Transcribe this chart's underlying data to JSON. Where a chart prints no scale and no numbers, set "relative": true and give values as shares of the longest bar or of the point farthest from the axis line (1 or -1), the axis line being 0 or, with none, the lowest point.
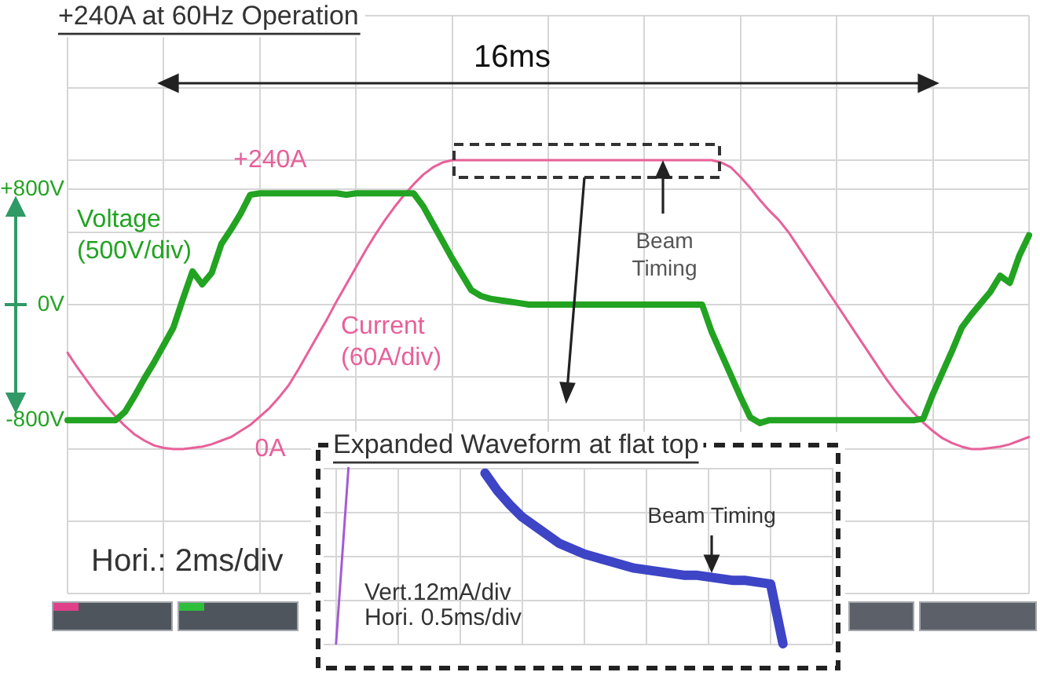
{
  "chart_data": [
    {
      "type": "line",
      "title": "+240A at 60Hz Operation",
      "categories": [
        null,
        null,
        null,
        null,
        null,
        null,
        null,
        null,
        null,
        null,
        null,
        null,
        null,
        null,
        null,
        null,
        null,
        null,
        null,
        null,
        null,
        null,
        null,
        null,
        null,
        null,
        null,
        null,
        null,
        null,
        null,
        null,
        null,
        null,
        null,
        null,
        null,
        null,
        null,
        null,
        null,
        null,
        null,
        null,
        null,
        null,
        null,
        null,
        null,
        null,
        null,
        null,
        null,
        null,
        null,
        null,
        null,
        null,
        null,
        null,
        null,
        null,
        null,
        null,
        null,
        null,
        null,
        null,
        null,
        null,
        null,
        null,
        null,
        null,
        null,
        null,
        null,
        null,
        null,
        null,
        null,
        null,
        null,
        null,
        null,
        null,
        null,
        null,
        null,
        null,
        null,
        null,
        null,
        null,
        null,
        null,
        null,
        null,
        null,
        null,
        null
      ],
      "series": [
        {
          "name": "Voltage (500V/div)",
          "color": "#22a322",
          "values": [
            -800,
            -800,
            -800,
            -800,
            -800,
            -800,
            -740,
            -630,
            -510,
            -400,
            -280,
            -160,
            40,
            230,
            140,
            220,
            420,
            520,
            630,
            760,
            770,
            770,
            770,
            770,
            770,
            770,
            770,
            770,
            770,
            760,
            770,
            770,
            770,
            770,
            770,
            770,
            770,
            680,
            560,
            440,
            320,
            210,
            100,
            60,
            40,
            30,
            20,
            10,
            0,
            0,
            0,
            0,
            0,
            0,
            0,
            0,
            0,
            0,
            0,
            0,
            0,
            0,
            0,
            0,
            0,
            0,
            0,
            -190,
            -340,
            -490,
            -640,
            -780,
            -820,
            -800,
            -800,
            -800,
            -800,
            -800,
            -800,
            -800,
            -800,
            -800,
            -800,
            -800,
            -800,
            -800,
            -800,
            -800,
            -800,
            -790,
            -620,
            -470,
            -320,
            -160,
            -70,
            10,
            90,
            200,
            150,
            340,
            480
          ]
        },
        {
          "name": "Current (60A/div)",
          "color": "#e8609a",
          "axis": "y2",
          "values": [
            80,
            68,
            57,
            46,
            36,
            27,
            19,
            12,
            7,
            3,
            1,
            0,
            0,
            1,
            2,
            4,
            7,
            10,
            15,
            20,
            27,
            34,
            43,
            53,
            66,
            80,
            94,
            108,
            123,
            137,
            151,
            165,
            178,
            190,
            201,
            211,
            220,
            228,
            234,
            238,
            240,
            240,
            240,
            240,
            240,
            240,
            240,
            240,
            240,
            240,
            240,
            240,
            240,
            240,
            240,
            240,
            240,
            240,
            240,
            240,
            240,
            240,
            240,
            240,
            240,
            240,
            240,
            240,
            238,
            234,
            226,
            217,
            207,
            198,
            190,
            180,
            168,
            156,
            144,
            132,
            120,
            108,
            96,
            84,
            72,
            60,
            49,
            39,
            30,
            22,
            15,
            9,
            5,
            2,
            0,
            0,
            1,
            2,
            4,
            7,
            10
          ]
        }
      ],
      "ylim": [
        -2000,
        2000
      ],
      "yticks": [
        {
          "value": -2000,
          "label": null
        },
        {
          "value": -1500,
          "label": null
        },
        {
          "value": -1000,
          "label": null
        },
        {
          "value": -800,
          "label": "-800V"
        },
        {
          "value": -500,
          "label": null
        },
        {
          "value": 0,
          "label": "0V"
        },
        {
          "value": 500,
          "label": null
        },
        {
          "value": 800,
          "label": "+800V"
        },
        {
          "value": 1000,
          "label": null
        },
        {
          "value": 1500,
          "label": null
        },
        {
          "value": 2000,
          "label": null
        }
      ],
      "y2lim": [
        -120,
        360
      ],
      "y2ticks": [
        {
          "value": 0,
          "label": "0A"
        },
        {
          "value": 240,
          "label": "+240A"
        }
      ],
      "grid": true,
      "marker": "none",
      "annotations": [
        "16ms",
        "Beam Timing",
        "Hori.: 2ms/div"
      ]
    },
    {
      "type": "line",
      "title": "Expanded Waveform at flat top",
      "relative": true,
      "categories": [
        null,
        null,
        null,
        null,
        null,
        null,
        null,
        null,
        null,
        null,
        null,
        null,
        null,
        null,
        null,
        null,
        null,
        null,
        null,
        null,
        null,
        null,
        null,
        null,
        null,
        null,
        null,
        null,
        null,
        null,
        null,
        null,
        null,
        null,
        null,
        null,
        null,
        null,
        null,
        null,
        null,
        null
      ],
      "series": [
        {
          "color": "#a35bd6",
          "values": [
            null,
            0,
            1,
            null,
            null,
            null,
            null,
            null,
            null,
            null,
            null,
            null,
            null,
            null,
            null,
            null,
            null,
            null,
            null,
            null,
            null,
            null,
            null,
            null,
            null,
            null,
            null,
            null,
            null,
            null,
            null,
            null,
            null,
            null,
            null,
            null,
            null,
            null,
            null,
            null,
            null,
            null
          ]
        },
        {
          "color": "#3d44c6",
          "values": [
            null,
            null,
            null,
            null,
            null,
            null,
            null,
            null,
            null,
            null,
            null,
            null,
            null,
            0.97,
            0.87,
            0.79,
            0.72,
            0.67,
            0.62,
            0.57,
            0.54,
            0.51,
            0.49,
            0.47,
            0.45,
            0.43,
            0.42,
            0.41,
            0.4,
            0.39,
            0.39,
            0.38,
            0.37,
            0.36,
            0.36,
            0.35,
            0.34,
            0,
            null,
            null,
            null,
            null
          ]
        }
      ],
      "grid": true,
      "marker": "none",
      "annotations": [
        "Beam Timing",
        "Vert.12mA/div",
        "Hori. 0.5ms/div"
      ]
    }
  ]
}
